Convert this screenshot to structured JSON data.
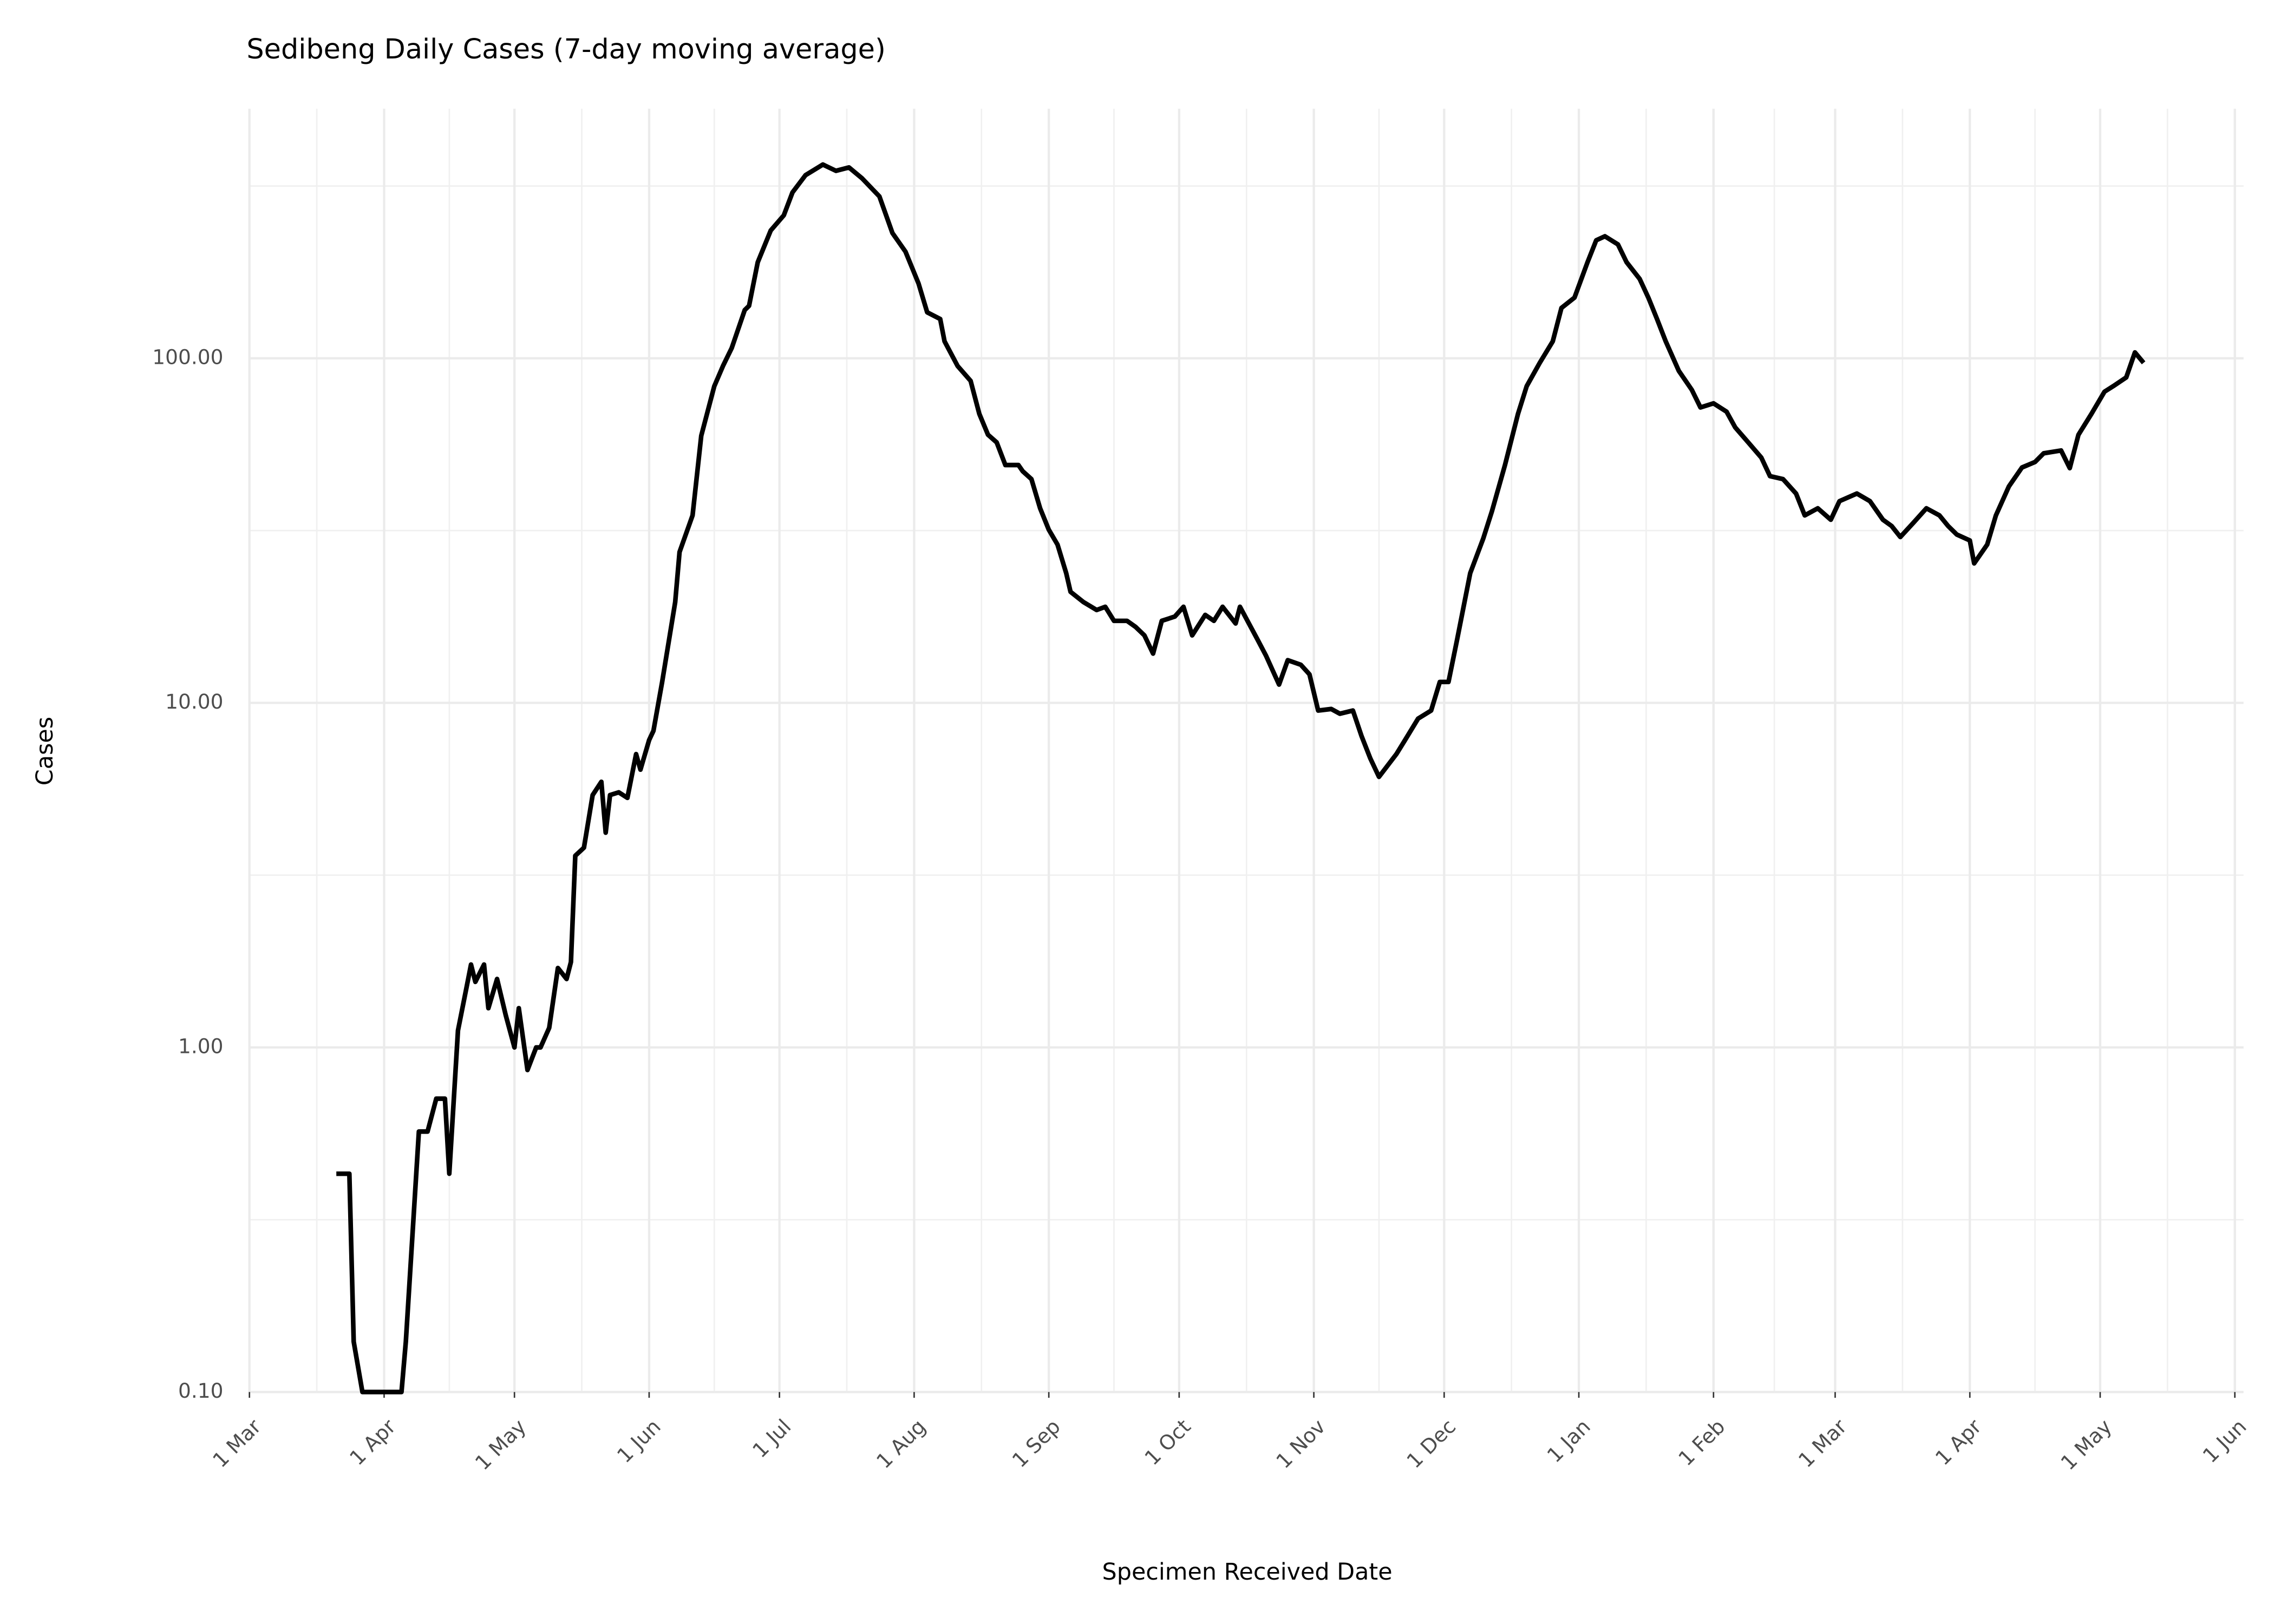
{
  "chart_data": {
    "type": "line",
    "title": "Sedibeng Daily Cases (7-day moving average)",
    "x_label": "Specimen Received Date",
    "y_label": "Cases",
    "y_scale": "log",
    "grid": true,
    "color": "#000000",
    "xlim": [
      0,
      457
    ],
    "xticks": [
      {
        "value": 0,
        "label": "1 Mar"
      },
      {
        "value": 31,
        "label": "1 Apr"
      },
      {
        "value": 61,
        "label": "1 May"
      },
      {
        "value": 92,
        "label": "1 Jun"
      },
      {
        "value": 122,
        "label": "1 Jul"
      },
      {
        "value": 153,
        "label": "1 Aug"
      },
      {
        "value": 184,
        "label": "1 Sep"
      },
      {
        "value": 214,
        "label": "1 Oct"
      },
      {
        "value": 245,
        "label": "1 Nov"
      },
      {
        "value": 275,
        "label": "1 Dec"
      },
      {
        "value": 306,
        "label": "1 Jan"
      },
      {
        "value": 337,
        "label": "1 Feb"
      },
      {
        "value": 365,
        "label": "1 Mar"
      },
      {
        "value": 396,
        "label": "1 Apr"
      },
      {
        "value": 426,
        "label": "1 May"
      },
      {
        "value": 457,
        "label": "1 Jun"
      }
    ],
    "ylim": [
      0.1,
      500
    ],
    "yticks": [
      {
        "value": 0.1,
        "label": "0.10"
      },
      {
        "value": 1,
        "label": "1.00"
      },
      {
        "value": 10,
        "label": "10.00"
      },
      {
        "value": 100,
        "label": "100.00"
      }
    ],
    "x": [
      20,
      23,
      24,
      26,
      35,
      36,
      39,
      41,
      43,
      45,
      46,
      48,
      50,
      51,
      52,
      54,
      55,
      57,
      59,
      61,
      62,
      64,
      66,
      67,
      69,
      71,
      73,
      74,
      75,
      77,
      79,
      81,
      82,
      83,
      85,
      87,
      89,
      90,
      92,
      93,
      95,
      98,
      99,
      102,
      104,
      107,
      109,
      111,
      114,
      115,
      117,
      120,
      123,
      125,
      128,
      132,
      135,
      138,
      141,
      145,
      148,
      151,
      154,
      156,
      159,
      160,
      163,
      166,
      168,
      170,
      172,
      174,
      177,
      178,
      180,
      182,
      184,
      186,
      188,
      189,
      192,
      195,
      197,
      199,
      202,
      204,
      206,
      208,
      210,
      213,
      215,
      217,
      220,
      222,
      224,
      227,
      228,
      232,
      234,
      237,
      239,
      242,
      244,
      246,
      249,
      251,
      254,
      256,
      258,
      260,
      264,
      266,
      269,
      272,
      274,
      276,
      278,
      281,
      284,
      286,
      289,
      292,
      294,
      297,
      300,
      302,
      305,
      308,
      310,
      312,
      315,
      317,
      320,
      322,
      324,
      326,
      329,
      332,
      334,
      337,
      340,
      342,
      345,
      348,
      350,
      353,
      356,
      358,
      361,
      364,
      366,
      370,
      373,
      376,
      378,
      380,
      383,
      386,
      389,
      391,
      393,
      396,
      397,
      400,
      402,
      405,
      408,
      411,
      413,
      417,
      419,
      421,
      424,
      427,
      429,
      432,
      434,
      436
    ],
    "values": [
      0.43,
      0.43,
      0.14,
      0.1,
      0.1,
      0.14,
      0.57,
      0.57,
      0.71,
      0.71,
      0.43,
      1.12,
      1.5,
      1.74,
      1.55,
      1.74,
      1.3,
      1.58,
      1.24,
      1.0,
      1.3,
      0.86,
      1.0,
      1.0,
      1.14,
      1.7,
      1.58,
      1.77,
      3.6,
      3.8,
      5.4,
      5.9,
      4.2,
      5.4,
      5.5,
      5.3,
      7.1,
      6.4,
      7.8,
      8.3,
      11.5,
      19.6,
      27.4,
      35,
      59.6,
      83,
      95,
      107,
      138,
      142,
      190,
      235,
      260,
      303,
      340,
      365,
      350,
      358,
      333,
      295,
      231,
      204,
      165,
      136,
      130,
      112,
      95,
      86,
      69,
      60,
      57,
      49,
      49,
      47,
      44.6,
      36.7,
      31.8,
      28.8,
      23.8,
      21,
      19.6,
      18.6,
      19,
      17.3,
      17.3,
      16.6,
      15.7,
      13.9,
      17.3,
      17.8,
      19,
      15.7,
      18,
      17.3,
      19,
      17,
      19,
      15.3,
      13.7,
      11.3,
      13.3,
      12.9,
      12.1,
      9.5,
      9.6,
      9.3,
      9.5,
      8.0,
      6.9,
      6.1,
      7.1,
      7.8,
      9.0,
      9.5,
      11.5,
      11.5,
      15.3,
      23.8,
      30,
      36,
      49,
      69,
      83,
      97,
      112,
      140,
      150,
      190,
      220,
      226,
      214,
      190,
      170,
      150,
      130,
      112,
      92,
      81,
      72,
      74,
      70,
      63,
      57,
      51.5,
      45.5,
      44.6,
      40.5,
      35,
      36.7,
      34,
      38.5,
      40.5,
      38.5,
      34,
      32.6,
      30.3,
      33.3,
      36.7,
      35,
      32.6,
      30.8,
      29.6,
      25.4,
      28.8,
      35,
      42.5,
      48.2,
      50,
      53,
      54,
      48,
      60,
      69,
      80,
      83,
      88,
      104,
      97
    ]
  }
}
